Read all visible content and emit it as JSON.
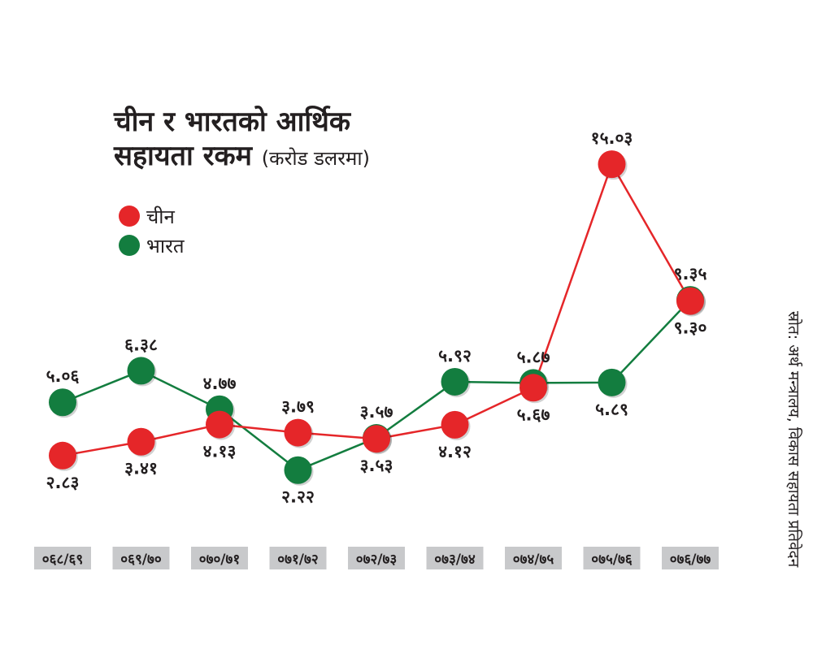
{
  "title": {
    "line1": "चीन र भारतको आर्थिक",
    "line2": "सहायता रकम",
    "unit": "(करोड डलरमा)"
  },
  "legend": [
    {
      "label": "चीन",
      "color": "#e52629"
    },
    {
      "label": "भारत",
      "color": "#137d3f"
    }
  ],
  "source": "स्रोत: अर्थ मन्त्रालय, विकास सहायता प्रतिवेदन",
  "chart_data": {
    "type": "line",
    "categories": [
      "०६८/६९",
      "०६९/७०",
      "०७०/७१",
      "०७१/७२",
      "०७२/७३",
      "०७३/७४",
      "०७४/७५",
      "०७५/७६",
      "०७६/७७"
    ],
    "series": [
      {
        "name": "चीन",
        "color": "#e52629",
        "values": [
          2.83,
          3.41,
          4.13,
          3.79,
          3.53,
          4.12,
          5.67,
          15.03,
          9.3
        ],
        "labels": [
          "२.८३",
          "३.४१",
          "४.१३",
          "३.७९",
          "३.५३",
          "४.१२",
          "५.६७",
          "१५.०३",
          "९.३०"
        ]
      },
      {
        "name": "भारत",
        "color": "#137d3f",
        "values": [
          5.06,
          6.38,
          4.77,
          2.22,
          3.57,
          5.92,
          5.87,
          5.89,
          9.35
        ],
        "labels": [
          "५.०६",
          "६.३८",
          "४.७७",
          "२.२२",
          "३.५७",
          "५.९२",
          "५.८७",
          "५.८९",
          "९.३५"
        ]
      }
    ],
    "grid": false,
    "legend_position": "top-left"
  }
}
